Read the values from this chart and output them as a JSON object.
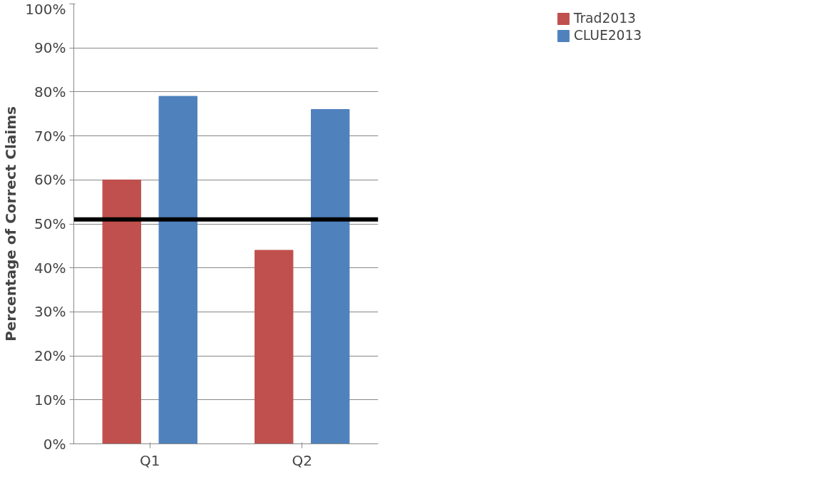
{
  "chart_data": {
    "type": "bar",
    "ylabel": "Percentage of Correct Claims",
    "categories": [
      "Q1",
      "Q2"
    ],
    "series": [
      {
        "name": "Trad2013",
        "color": "#c0504d",
        "values": [
          60,
          44
        ]
      },
      {
        "name": "CLUE2013",
        "color": "#4f81bd",
        "values": [
          79,
          76
        ]
      }
    ],
    "ylim": [
      0,
      100
    ],
    "yticks": [
      {
        "value": 0,
        "label": "0%"
      },
      {
        "value": 10,
        "label": "10%"
      },
      {
        "value": 20,
        "label": "20%"
      },
      {
        "value": 30,
        "label": "30%"
      },
      {
        "value": 40,
        "label": "40%"
      },
      {
        "value": 50,
        "label": "50%"
      },
      {
        "value": 60,
        "label": "60%"
      },
      {
        "value": 70,
        "label": "70%"
      },
      {
        "value": 80,
        "label": "80%"
      },
      {
        "value": 90,
        "label": "90%"
      },
      {
        "value": 100,
        "label": "100%"
      }
    ],
    "ref_lines": [
      {
        "axis": "y",
        "value": 51,
        "color": "#000000"
      }
    ],
    "grid": "y",
    "legend": "top right"
  }
}
